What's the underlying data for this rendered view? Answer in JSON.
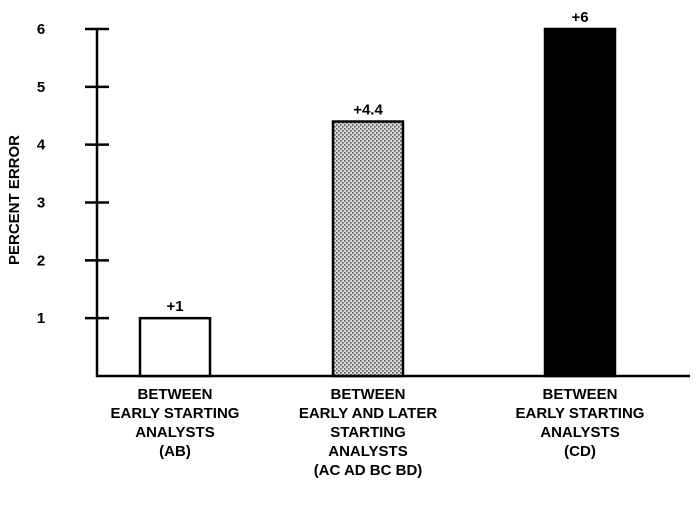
{
  "chart_data": {
    "type": "bar",
    "ylabel": "PERCENT ERROR",
    "xlabel": "",
    "title": "",
    "ylim": [
      0,
      6
    ],
    "yticks": [
      1,
      2,
      3,
      4,
      5,
      6
    ],
    "grid": false,
    "legend": "none",
    "categories": [
      {
        "label_lines": [
          "BETWEEN",
          "EARLY STARTING",
          "ANALYSTS",
          "(AB)"
        ],
        "value": 1,
        "value_label": "+1",
        "fill": "white"
      },
      {
        "label_lines": [
          "BETWEEN",
          "EARLY AND LATER",
          "STARTING",
          "ANALYSTS",
          "(AC AD BC BD)"
        ],
        "value": 4.4,
        "value_label": "+4.4",
        "fill": "stippled"
      },
      {
        "label_lines": [
          "BETWEEN",
          "EARLY STARTING",
          "ANALYSTS",
          "(CD)"
        ],
        "value": 6,
        "value_label": "+6",
        "fill": "black"
      }
    ],
    "colors": {
      "ink": "#000000",
      "background": "#ffffff",
      "stipple_light": "#d8d8d8",
      "stipple_dark": "#555555"
    }
  }
}
